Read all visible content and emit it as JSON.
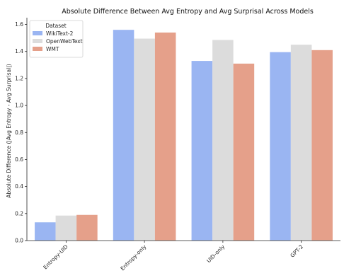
{
  "chart_data": {
    "type": "bar",
    "title": "Absolute Difference Between Avg Entropy and Avg Surprisal Across Models",
    "xlabel": "",
    "ylabel": "Absolute Difference (|Avg Entropy - Avg Surprisal|)",
    "categories": [
      "Entropy-UID",
      "Entropy-only",
      "UID-only",
      "GPT-2"
    ],
    "series": [
      {
        "name": "WikiText-2",
        "color": "#9ab5f2",
        "values": [
          0.135,
          1.56,
          1.33,
          1.395
        ]
      },
      {
        "name": "OpenWebText",
        "color": "#dcdcdc",
        "values": [
          0.185,
          1.495,
          1.485,
          1.45
        ]
      },
      {
        "name": "WMT",
        "color": "#e5a08a",
        "values": [
          0.19,
          1.54,
          1.31,
          1.41
        ]
      }
    ],
    "ylim": [
      0,
      1.65
    ],
    "yticks": [
      "0.0",
      "0.2",
      "0.4",
      "0.6",
      "0.8",
      "1.0",
      "1.2",
      "1.4",
      "1.6"
    ],
    "grid": false,
    "legend": {
      "title": "Dataset",
      "placement": "upper-left"
    }
  }
}
